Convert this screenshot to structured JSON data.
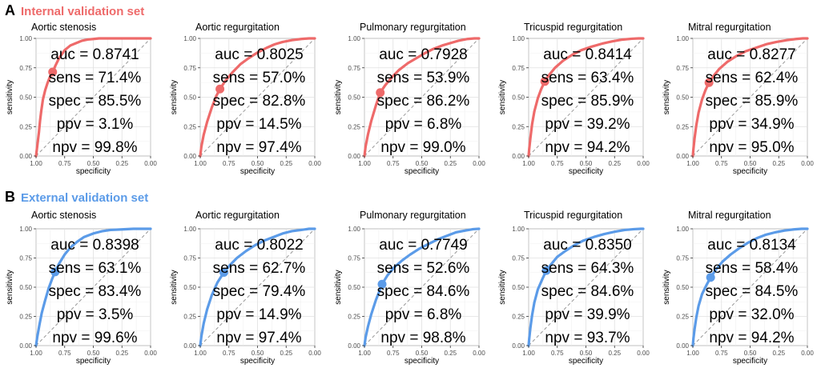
{
  "chart_data": [
    {
      "label": "A",
      "title": "Internal validation set",
      "color": "#ee6a6a",
      "panels": [
        {
          "type": "line",
          "title": "Aortic stenosis",
          "xlabel": "specificity",
          "ylabel": "sensitivity",
          "xlim": [
            1.0,
            0.0
          ],
          "ylim": [
            0.0,
            1.0
          ],
          "xticks": [
            "1.00",
            "0.75",
            "0.50",
            "0.25",
            "0.00"
          ],
          "yticks": [
            "0.00",
            "0.25",
            "0.50",
            "0.75",
            "1.00"
          ],
          "metrics": [
            "auc = 0.8741",
            "sens = 71.4%",
            "spec = 85.5%",
            "ppv = 3.1%",
            "npv = 99.8%"
          ],
          "operating_point": {
            "specificity": 0.855,
            "sensitivity": 0.714
          },
          "curve": {
            "specificity": [
              1.0,
              0.99,
              0.975,
              0.965,
              0.955,
              0.94,
              0.92,
              0.9,
              0.88,
              0.855,
              0.83,
              0.8,
              0.75,
              0.7,
              0.65,
              0.6,
              0.55,
              0.5,
              0.45,
              0.4,
              0.2,
              0.0
            ],
            "sensitivity": [
              0.0,
              0.08,
              0.2,
              0.3,
              0.38,
              0.48,
              0.56,
              0.62,
              0.67,
              0.714,
              0.77,
              0.83,
              0.9,
              0.94,
              0.96,
              0.98,
              0.99,
              0.995,
              1.0,
              1.0,
              1.0,
              1.0
            ]
          }
        },
        {
          "type": "line",
          "title": "Aortic regurgitation",
          "xlabel": "specificity",
          "ylabel": "sensitivity",
          "xlim": [
            1.0,
            0.0
          ],
          "ylim": [
            0.0,
            1.0
          ],
          "xticks": [
            "1.00",
            "0.75",
            "0.50",
            "0.25",
            "0.00"
          ],
          "yticks": [
            "0.00",
            "0.25",
            "0.50",
            "0.75",
            "1.00"
          ],
          "metrics": [
            "auc = 0.8025",
            "sens = 57.0%",
            "spec = 82.8%",
            "ppv = 14.5%",
            "npv = 97.4%"
          ],
          "operating_point": {
            "specificity": 0.828,
            "sensitivity": 0.57
          },
          "curve": {
            "specificity": [
              1.0,
              0.99,
              0.97,
              0.94,
              0.9,
              0.86,
              0.828,
              0.78,
              0.72,
              0.65,
              0.58,
              0.5,
              0.42,
              0.35,
              0.28,
              0.2,
              0.12,
              0.05,
              0.0
            ],
            "sensitivity": [
              0.0,
              0.08,
              0.18,
              0.29,
              0.41,
              0.51,
              0.57,
              0.64,
              0.71,
              0.78,
              0.83,
              0.88,
              0.92,
              0.95,
              0.97,
              0.985,
              0.995,
              1.0,
              1.0
            ]
          }
        },
        {
          "type": "line",
          "title": "Pulmonary regurgitation",
          "xlabel": "specificity",
          "ylabel": "sensitivity",
          "xlim": [
            1.0,
            0.0
          ],
          "ylim": [
            0.0,
            1.0
          ],
          "xticks": [
            "1.00",
            "0.75",
            "0.50",
            "0.25",
            "0.00"
          ],
          "yticks": [
            "0.00",
            "0.25",
            "0.50",
            "0.75",
            "1.00"
          ],
          "metrics": [
            "auc = 0.7928",
            "sens = 53.9%",
            "spec = 86.2%",
            "ppv = 6.8%",
            "npv = 99.0%"
          ],
          "operating_point": {
            "specificity": 0.862,
            "sensitivity": 0.539
          },
          "curve": {
            "specificity": [
              1.0,
              0.99,
              0.97,
              0.94,
              0.9,
              0.862,
              0.82,
              0.76,
              0.7,
              0.62,
              0.55,
              0.48,
              0.4,
              0.32,
              0.25,
              0.18,
              0.1,
              0.04,
              0.0
            ],
            "sensitivity": [
              0.0,
              0.08,
              0.18,
              0.3,
              0.43,
              0.539,
              0.6,
              0.67,
              0.73,
              0.79,
              0.83,
              0.87,
              0.91,
              0.94,
              0.96,
              0.98,
              0.995,
              1.0,
              1.0
            ]
          }
        },
        {
          "type": "line",
          "title": "Tricuspid regurgitation",
          "xlabel": "specificity",
          "ylabel": "sensitivity",
          "xlim": [
            1.0,
            0.0
          ],
          "ylim": [
            0.0,
            1.0
          ],
          "xticks": [
            "1.00",
            "0.75",
            "0.50",
            "0.25",
            "0.00"
          ],
          "yticks": [
            "0.00",
            "0.25",
            "0.50",
            "0.75",
            "1.00"
          ],
          "metrics": [
            "auc = 0.8414",
            "sens = 63.4%",
            "spec = 85.9%",
            "ppv = 39.2%",
            "npv = 94.2%"
          ],
          "operating_point": {
            "specificity": 0.859,
            "sensitivity": 0.634
          },
          "curve": {
            "specificity": [
              1.0,
              0.995,
              0.985,
              0.97,
              0.95,
              0.92,
              0.89,
              0.859,
              0.82,
              0.77,
              0.7,
              0.62,
              0.54,
              0.45,
              0.36,
              0.27,
              0.18,
              0.1,
              0.04,
              0.0
            ],
            "sensitivity": [
              0.0,
              0.06,
              0.15,
              0.27,
              0.38,
              0.49,
              0.57,
              0.634,
              0.69,
              0.75,
              0.81,
              0.86,
              0.9,
              0.93,
              0.955,
              0.975,
              0.99,
              0.997,
              1.0,
              1.0
            ]
          }
        },
        {
          "type": "line",
          "title": "Mitral regurgitation",
          "xlabel": "specificity",
          "ylabel": "sensitivity",
          "xlim": [
            1.0,
            0.0
          ],
          "ylim": [
            0.0,
            1.0
          ],
          "xticks": [
            "1.00",
            "0.75",
            "0.50",
            "0.25",
            "0.00"
          ],
          "yticks": [
            "0.00",
            "0.25",
            "0.50",
            "0.75",
            "1.00"
          ],
          "metrics": [
            "auc = 0.8277",
            "sens = 62.4%",
            "spec = 85.9%",
            "ppv = 34.9%",
            "npv = 95.0%"
          ],
          "operating_point": {
            "specificity": 0.859,
            "sensitivity": 0.624
          },
          "curve": {
            "specificity": [
              1.0,
              0.995,
              0.985,
              0.97,
              0.95,
              0.92,
              0.89,
              0.859,
              0.82,
              0.77,
              0.7,
              0.62,
              0.54,
              0.45,
              0.36,
              0.27,
              0.18,
              0.1,
              0.04,
              0.0
            ],
            "sensitivity": [
              0.0,
              0.06,
              0.15,
              0.26,
              0.37,
              0.48,
              0.56,
              0.624,
              0.68,
              0.74,
              0.8,
              0.85,
              0.89,
              0.92,
              0.95,
              0.97,
              0.985,
              0.995,
              1.0,
              1.0
            ]
          }
        }
      ]
    },
    {
      "label": "B",
      "title": "External validation set",
      "color": "#5b9be8",
      "panels": [
        {
          "type": "line",
          "title": "Aortic stenosis",
          "xlabel": "specificity",
          "ylabel": "sensitivity",
          "xlim": [
            1.0,
            0.0
          ],
          "ylim": [
            0.0,
            1.0
          ],
          "xticks": [
            "1.00",
            "0.75",
            "0.50",
            "0.25",
            "0.00"
          ],
          "yticks": [
            "0.00",
            "0.25",
            "0.50",
            "0.75",
            "1.00"
          ],
          "metrics": [
            "auc = 0.8398",
            "sens = 63.1%",
            "spec = 83.4%",
            "ppv = 3.5%",
            "npv = 99.6%"
          ],
          "operating_point": {
            "specificity": 0.834,
            "sensitivity": 0.631
          },
          "curve": {
            "specificity": [
              1.0,
              0.99,
              0.97,
              0.95,
              0.92,
              0.89,
              0.86,
              0.834,
              0.8,
              0.75,
              0.7,
              0.64,
              0.58,
              0.5,
              0.42,
              0.35,
              0.25,
              0.15,
              0.05,
              0.0
            ],
            "sensitivity": [
              0.0,
              0.07,
              0.18,
              0.28,
              0.39,
              0.49,
              0.57,
              0.631,
              0.7,
              0.78,
              0.84,
              0.89,
              0.93,
              0.96,
              0.98,
              0.99,
              0.995,
              1.0,
              1.0,
              1.0
            ]
          }
        },
        {
          "type": "line",
          "title": "Aortic regurgitation",
          "xlabel": "specificity",
          "ylabel": "sensitivity",
          "xlim": [
            1.0,
            0.0
          ],
          "ylim": [
            0.0,
            1.0
          ],
          "xticks": [
            "1.00",
            "0.75",
            "0.50",
            "0.25",
            "0.00"
          ],
          "yticks": [
            "0.00",
            "0.25",
            "0.50",
            "0.75",
            "1.00"
          ],
          "metrics": [
            "auc = 0.8022",
            "sens = 62.7%",
            "spec = 79.4%",
            "ppv = 14.9%",
            "npv = 97.4%"
          ],
          "operating_point": {
            "specificity": 0.794,
            "sensitivity": 0.627
          },
          "curve": {
            "specificity": [
              1.0,
              0.99,
              0.97,
              0.94,
              0.9,
              0.85,
              0.794,
              0.74,
              0.68,
              0.6,
              0.52,
              0.44,
              0.36,
              0.28,
              0.2,
              0.12,
              0.05,
              0.0
            ],
            "sensitivity": [
              0.0,
              0.08,
              0.19,
              0.31,
              0.43,
              0.54,
              0.627,
              0.69,
              0.75,
              0.81,
              0.86,
              0.9,
              0.93,
              0.96,
              0.98,
              0.99,
              1.0,
              1.0
            ]
          }
        },
        {
          "type": "line",
          "title": "Pulmonary regurgitation",
          "xlabel": "specificity",
          "ylabel": "sensitivity",
          "xlim": [
            1.0,
            0.0
          ],
          "ylim": [
            0.0,
            1.0
          ],
          "xticks": [
            "1.00",
            "0.75",
            "0.50",
            "0.25",
            "0.00"
          ],
          "yticks": [
            "0.00",
            "0.25",
            "0.50",
            "0.75",
            "1.00"
          ],
          "metrics": [
            "auc = 0.7749",
            "sens = 52.6%",
            "spec = 84.6%",
            "ppv = 6.8%",
            "npv = 98.8%"
          ],
          "operating_point": {
            "specificity": 0.846,
            "sensitivity": 0.526
          },
          "curve": {
            "specificity": [
              1.0,
              0.99,
              0.97,
              0.94,
              0.9,
              0.846,
              0.8,
              0.74,
              0.67,
              0.6,
              0.52,
              0.44,
              0.36,
              0.28,
              0.2,
              0.12,
              0.05,
              0.0
            ],
            "sensitivity": [
              0.0,
              0.07,
              0.16,
              0.27,
              0.39,
              0.526,
              0.6,
              0.67,
              0.73,
              0.78,
              0.83,
              0.87,
              0.91,
              0.94,
              0.97,
              0.985,
              0.997,
              1.0
            ]
          }
        },
        {
          "type": "line",
          "title": "Tricuspid regurgitation",
          "xlabel": "specificity",
          "ylabel": "sensitivity",
          "xlim": [
            1.0,
            0.0
          ],
          "ylim": [
            0.0,
            1.0
          ],
          "xticks": [
            "1.00",
            "0.75",
            "0.50",
            "0.25",
            "0.00"
          ],
          "yticks": [
            "0.00",
            "0.25",
            "0.50",
            "0.75",
            "1.00"
          ],
          "metrics": [
            "auc = 0.8350",
            "sens = 64.3%",
            "spec = 84.6%",
            "ppv = 39.9%",
            "npv = 93.7%"
          ],
          "operating_point": {
            "specificity": 0.846,
            "sensitivity": 0.643
          },
          "curve": {
            "specificity": [
              1.0,
              0.995,
              0.985,
              0.97,
              0.95,
              0.92,
              0.88,
              0.846,
              0.8,
              0.75,
              0.68,
              0.6,
              0.52,
              0.43,
              0.34,
              0.25,
              0.16,
              0.08,
              0.02,
              0.0
            ],
            "sensitivity": [
              0.0,
              0.06,
              0.15,
              0.26,
              0.37,
              0.48,
              0.57,
              0.643,
              0.7,
              0.76,
              0.81,
              0.86,
              0.9,
              0.93,
              0.955,
              0.975,
              0.99,
              0.997,
              1.0,
              1.0
            ]
          }
        },
        {
          "type": "line",
          "title": "Mitral regurgitation",
          "xlabel": "specificity",
          "ylabel": "sensitivity",
          "xlim": [
            1.0,
            0.0
          ],
          "ylim": [
            0.0,
            1.0
          ],
          "xticks": [
            "1.00",
            "0.75",
            "0.50",
            "0.25",
            "0.00"
          ],
          "yticks": [
            "0.00",
            "0.25",
            "0.50",
            "0.75",
            "1.00"
          ],
          "metrics": [
            "auc = 0.8134",
            "sens = 58.4%",
            "spec = 84.5%",
            "ppv = 32.0%",
            "npv = 94.2%"
          ],
          "operating_point": {
            "specificity": 0.845,
            "sensitivity": 0.584
          },
          "curve": {
            "specificity": [
              1.0,
              0.995,
              0.985,
              0.97,
              0.95,
              0.92,
              0.88,
              0.845,
              0.8,
              0.74,
              0.67,
              0.6,
              0.52,
              0.44,
              0.36,
              0.28,
              0.2,
              0.12,
              0.05,
              0.0
            ],
            "sensitivity": [
              0.0,
              0.06,
              0.14,
              0.24,
              0.34,
              0.44,
              0.52,
              0.584,
              0.65,
              0.72,
              0.78,
              0.83,
              0.88,
              0.92,
              0.95,
              0.97,
              0.985,
              0.995,
              1.0,
              1.0
            ]
          }
        }
      ]
    }
  ]
}
